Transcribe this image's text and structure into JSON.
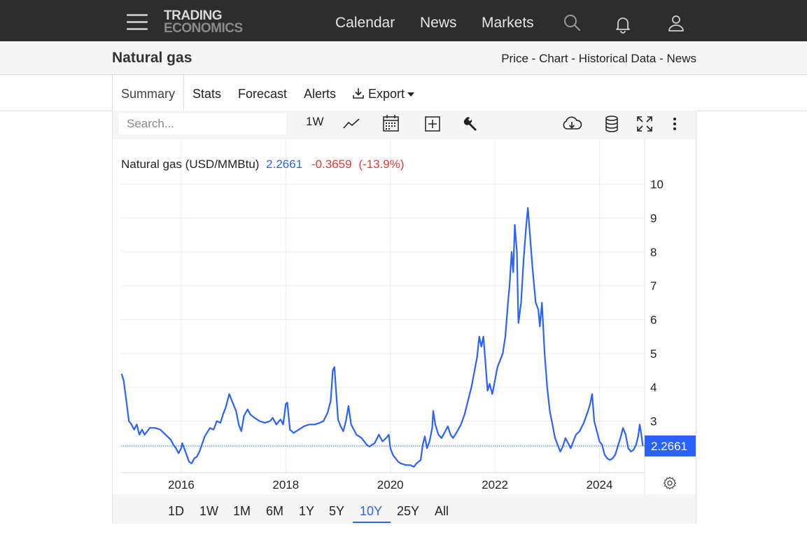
{
  "nav": {
    "logo_line1": "TRADING",
    "logo_line2": "ECONOMICS",
    "links": [
      "Calendar",
      "News",
      "Markets"
    ]
  },
  "header": {
    "title": "Natural gas",
    "crumbs": [
      "Price",
      "Chart",
      "Historical Data",
      "News"
    ],
    "crumb_sep": "-"
  },
  "tabs": [
    "Summary",
    "Stats",
    "Forecast",
    "Alerts",
    "Export"
  ],
  "toolbar": {
    "search_placeholder": "Search...",
    "interval": "1W"
  },
  "chart_data": {
    "type": "line",
    "series_label": "Natural gas (USD/MMBtu)",
    "last_value": "2.2661",
    "change": "-0.3659",
    "change_pct": "(-13.9%)",
    "price_badge": "2.2661",
    "y_ticks": [
      3,
      4,
      5,
      6,
      7,
      8,
      9,
      10
    ],
    "x_ticks": [
      "2016",
      "2018",
      "2020",
      "2022",
      "2024"
    ],
    "x_tick_years": [
      2016,
      2018,
      2020,
      2022,
      2024
    ],
    "ylim": [
      1.5,
      10.5
    ],
    "xlim": [
      2014.85,
      2024.85
    ],
    "grid": true,
    "accent_color": "#2962ff",
    "negative_color": "#e53935",
    "points": [
      [
        2014.86,
        4.4
      ],
      [
        2014.9,
        4.2
      ],
      [
        2014.95,
        3.6
      ],
      [
        2015.0,
        3.0
      ],
      [
        2015.05,
        2.9
      ],
      [
        2015.1,
        2.75
      ],
      [
        2015.15,
        2.9
      ],
      [
        2015.2,
        2.6
      ],
      [
        2015.25,
        2.75
      ],
      [
        2015.3,
        2.6
      ],
      [
        2015.35,
        2.7
      ],
      [
        2015.4,
        2.8
      ],
      [
        2015.5,
        2.8
      ],
      [
        2015.6,
        2.75
      ],
      [
        2015.7,
        2.6
      ],
      [
        2015.8,
        2.45
      ],
      [
        2015.85,
        2.3
      ],
      [
        2015.9,
        2.2
      ],
      [
        2015.95,
        2.05
      ],
      [
        2016.0,
        2.2
      ],
      [
        2016.02,
        2.35
      ],
      [
        2016.08,
        2.1
      ],
      [
        2016.15,
        1.8
      ],
      [
        2016.2,
        1.75
      ],
      [
        2016.25,
        1.9
      ],
      [
        2016.3,
        1.95
      ],
      [
        2016.35,
        2.1
      ],
      [
        2016.45,
        2.55
      ],
      [
        2016.55,
        2.8
      ],
      [
        2016.62,
        2.75
      ],
      [
        2016.68,
        3.0
      ],
      [
        2016.75,
        2.95
      ],
      [
        2016.8,
        3.2
      ],
      [
        2016.85,
        3.4
      ],
      [
        2016.92,
        3.8
      ],
      [
        2016.97,
        3.6
      ],
      [
        2017.05,
        3.3
      ],
      [
        2017.1,
        2.9
      ],
      [
        2017.15,
        2.7
      ],
      [
        2017.2,
        3.15
      ],
      [
        2017.27,
        3.35
      ],
      [
        2017.32,
        3.2
      ],
      [
        2017.4,
        3.1
      ],
      [
        2017.5,
        3.0
      ],
      [
        2017.6,
        2.95
      ],
      [
        2017.7,
        3.0
      ],
      [
        2017.75,
        3.1
      ],
      [
        2017.82,
        2.9
      ],
      [
        2017.9,
        3.05
      ],
      [
        2017.95,
        2.9
      ],
      [
        2018.0,
        3.5
      ],
      [
        2018.03,
        3.55
      ],
      [
        2018.08,
        2.75
      ],
      [
        2018.15,
        2.65
      ],
      [
        2018.25,
        2.75
      ],
      [
        2018.35,
        2.85
      ],
      [
        2018.45,
        2.9
      ],
      [
        2018.55,
        2.9
      ],
      [
        2018.65,
        2.95
      ],
      [
        2018.72,
        3.0
      ],
      [
        2018.8,
        3.25
      ],
      [
        2018.86,
        3.6
      ],
      [
        2018.9,
        4.5
      ],
      [
        2018.93,
        4.6
      ],
      [
        2018.97,
        3.7
      ],
      [
        2019.0,
        3.05
      ],
      [
        2019.05,
        2.85
      ],
      [
        2019.1,
        2.7
      ],
      [
        2019.15,
        3.0
      ],
      [
        2019.2,
        3.45
      ],
      [
        2019.25,
        2.9
      ],
      [
        2019.35,
        2.6
      ],
      [
        2019.45,
        2.5
      ],
      [
        2019.55,
        2.3
      ],
      [
        2019.6,
        2.25
      ],
      [
        2019.7,
        2.35
      ],
      [
        2019.78,
        2.6
      ],
      [
        2019.85,
        2.4
      ],
      [
        2019.92,
        2.5
      ],
      [
        2019.97,
        2.6
      ],
      [
        2020.0,
        2.2
      ],
      [
        2020.05,
        2.0
      ],
      [
        2020.1,
        1.9
      ],
      [
        2020.15,
        1.8
      ],
      [
        2020.2,
        1.75
      ],
      [
        2020.3,
        1.7
      ],
      [
        2020.38,
        1.7
      ],
      [
        2020.45,
        1.65
      ],
      [
        2020.5,
        1.75
      ],
      [
        2020.58,
        1.85
      ],
      [
        2020.62,
        2.3
      ],
      [
        2020.66,
        2.55
      ],
      [
        2020.7,
        2.2
      ],
      [
        2020.75,
        2.4
      ],
      [
        2020.8,
        2.8
      ],
      [
        2020.82,
        3.3
      ],
      [
        2020.86,
        2.9
      ],
      [
        2020.92,
        2.6
      ],
      [
        2020.98,
        2.5
      ],
      [
        2021.05,
        2.7
      ],
      [
        2021.1,
        2.85
      ],
      [
        2021.15,
        2.6
      ],
      [
        2021.2,
        2.5
      ],
      [
        2021.28,
        2.7
      ],
      [
        2021.35,
        2.9
      ],
      [
        2021.42,
        3.2
      ],
      [
        2021.5,
        3.7
      ],
      [
        2021.55,
        4.0
      ],
      [
        2021.6,
        4.4
      ],
      [
        2021.66,
        4.9
      ],
      [
        2021.7,
        5.5
      ],
      [
        2021.74,
        5.2
      ],
      [
        2021.78,
        5.5
      ],
      [
        2021.82,
        4.7
      ],
      [
        2021.86,
        3.9
      ],
      [
        2021.9,
        4.1
      ],
      [
        2021.95,
        3.8
      ],
      [
        2022.0,
        4.2
      ],
      [
        2022.05,
        4.6
      ],
      [
        2022.1,
        4.8
      ],
      [
        2022.15,
        5.0
      ],
      [
        2022.2,
        5.5
      ],
      [
        2022.25,
        6.5
      ],
      [
        2022.28,
        7.0
      ],
      [
        2022.32,
        8.0
      ],
      [
        2022.35,
        7.4
      ],
      [
        2022.38,
        8.8
      ],
      [
        2022.42,
        8.0
      ],
      [
        2022.45,
        5.9
      ],
      [
        2022.5,
        6.5
      ],
      [
        2022.55,
        7.8
      ],
      [
        2022.6,
        8.8
      ],
      [
        2022.63,
        9.3
      ],
      [
        2022.67,
        8.5
      ],
      [
        2022.72,
        7.5
      ],
      [
        2022.78,
        6.5
      ],
      [
        2022.83,
        6.3
      ],
      [
        2022.86,
        5.8
      ],
      [
        2022.9,
        6.5
      ],
      [
        2022.95,
        5.0
      ],
      [
        2023.0,
        4.0
      ],
      [
        2023.05,
        3.3
      ],
      [
        2023.1,
        2.9
      ],
      [
        2023.15,
        2.5
      ],
      [
        2023.2,
        2.3
      ],
      [
        2023.25,
        2.1
      ],
      [
        2023.3,
        2.25
      ],
      [
        2023.35,
        2.5
      ],
      [
        2023.4,
        2.35
      ],
      [
        2023.45,
        2.2
      ],
      [
        2023.55,
        2.6
      ],
      [
        2023.62,
        2.7
      ],
      [
        2023.7,
        2.95
      ],
      [
        2023.78,
        3.3
      ],
      [
        2023.82,
        3.5
      ],
      [
        2023.86,
        3.8
      ],
      [
        2023.9,
        3.0
      ],
      [
        2023.95,
        2.7
      ],
      [
        2024.0,
        2.4
      ],
      [
        2024.05,
        2.3
      ],
      [
        2024.1,
        2.0
      ],
      [
        2024.15,
        1.9
      ],
      [
        2024.2,
        1.85
      ],
      [
        2024.25,
        1.9
      ],
      [
        2024.3,
        2.0
      ],
      [
        2024.4,
        2.5
      ],
      [
        2024.45,
        2.8
      ],
      [
        2024.5,
        2.6
      ],
      [
        2024.55,
        2.2
      ],
      [
        2024.6,
        2.1
      ],
      [
        2024.65,
        2.15
      ],
      [
        2024.7,
        2.3
      ],
      [
        2024.74,
        2.55
      ],
      [
        2024.77,
        2.9
      ],
      [
        2024.8,
        2.6
      ],
      [
        2024.83,
        2.2661
      ]
    ]
  },
  "ranges": [
    "1D",
    "1W",
    "1M",
    "6M",
    "1Y",
    "5Y",
    "10Y",
    "25Y",
    "All"
  ],
  "active_range": "10Y"
}
